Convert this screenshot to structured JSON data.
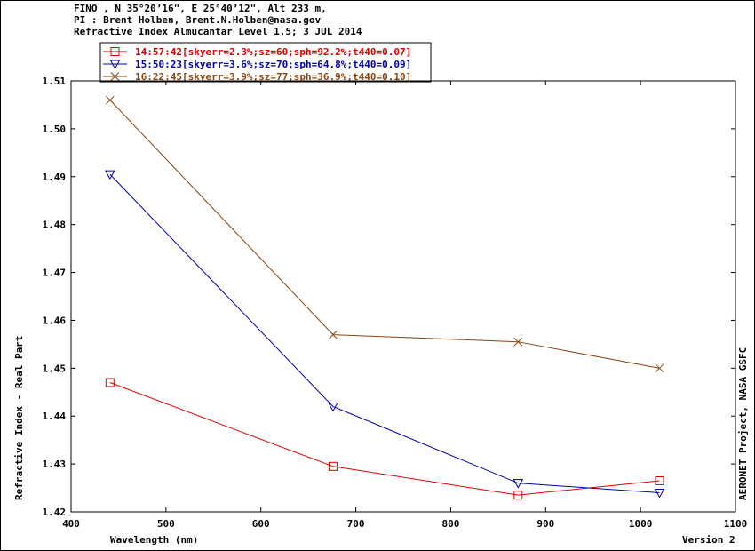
{
  "header": {
    "line1": "FINO , N 35°20’16\", E 25°40’12\", Alt 233 m,",
    "line2": "PI : Brent Holben, Brent.N.Holben@nasa.gov",
    "line3": "Refractive Index Almucantar Level 1.5; 3 JUL 2014"
  },
  "footer": {
    "right_side_text": "AERONET Project, NASA GSFC",
    "version": "Version 2"
  },
  "colors": {
    "red": "#dd0000",
    "blue": "#0000aa",
    "brown": "#8b4513"
  },
  "chart_data": {
    "type": "line",
    "title": "Refractive Index Almucantar Level 1.5; 3 JUL 2014",
    "xlabel": "Wavelength (nm)",
    "ylabel": "Refractive Index - Real Part",
    "xlim": [
      400,
      1100
    ],
    "ylim": [
      1.42,
      1.51
    ],
    "xticks": [
      "400",
      "500",
      "600",
      "700",
      "800",
      "900",
      "1000",
      "1100"
    ],
    "yticks": [
      "1.42",
      "1.43",
      "1.44",
      "1.45",
      "1.46",
      "1.47",
      "1.48",
      "1.49",
      "1.50",
      "1.51"
    ],
    "grid": false,
    "legend_position": "top-left",
    "x": [
      441,
      676,
      871,
      1020
    ],
    "series": [
      {
        "name": "14:57:42[skyerr=2.3%;sz=60;sph=92.2%;t440=0.07]",
        "values": [
          1.447,
          1.4295,
          1.4235,
          1.4265
        ],
        "color": "#dd0000",
        "marker": "square"
      },
      {
        "name": "15:50:23[skyerr=3.6%;sz=70;sph=64.8%;t440=0.09]",
        "values": [
          1.4905,
          1.442,
          1.426,
          1.424
        ],
        "color": "#0000aa",
        "marker": "triangle-down"
      },
      {
        "name": "16:22:45[skyerr=3.9%;sz=77;sph=36.9%;t440=0.10]",
        "values": [
          1.506,
          1.457,
          1.4555,
          1.45
        ],
        "color": "#8b4513",
        "marker": "x"
      }
    ]
  }
}
